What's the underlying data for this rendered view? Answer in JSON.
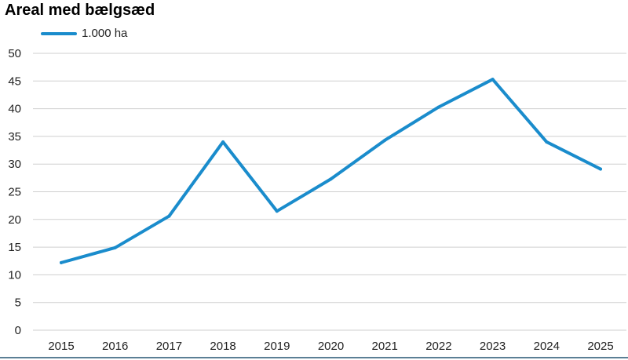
{
  "chart_data": {
    "type": "line",
    "title": "Areal med bælgsæd",
    "xlabel": "",
    "ylabel": "",
    "categories": [
      "2015",
      "2016",
      "2017",
      "2018",
      "2019",
      "2020",
      "2021",
      "2022",
      "2023",
      "2024",
      "2025"
    ],
    "series": [
      {
        "name": "1.000 ha",
        "values": [
          12.2,
          14.9,
          20.6,
          34.0,
          21.5,
          27.3,
          34.3,
          40.3,
          45.3,
          34.0,
          29.1
        ]
      }
    ],
    "ylim": [
      0,
      50
    ],
    "yticks": [
      "0",
      "5",
      "10",
      "15",
      "20",
      "25",
      "30",
      "35",
      "40",
      "45",
      "50"
    ],
    "grid": true,
    "legend": "top-left",
    "line_color": "#1a8ccc",
    "grid_color": "#cfcfcf"
  }
}
